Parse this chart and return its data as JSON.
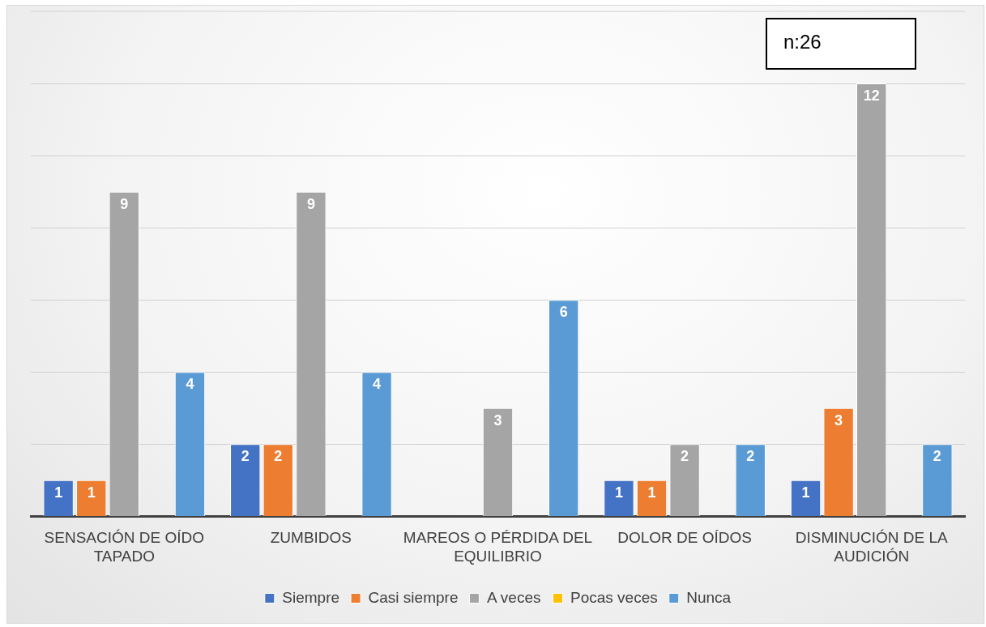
{
  "chart_data": {
    "type": "bar",
    "categories": [
      "SENSACIÓN DE OÍDO TAPADO",
      "ZUMBIDOS",
      "MAREOS O PÉRDIDA DEL EQUILIBRIO",
      "DOLOR DE OÍDOS",
      "DISMINUCIÓN DE LA AUDICIÓN"
    ],
    "series": [
      {
        "name": "Siempre",
        "color": "#4472c4",
        "values": [
          1,
          2,
          null,
          1,
          1
        ]
      },
      {
        "name": "Casi siempre",
        "color": "#ed7d31",
        "values": [
          1,
          2,
          null,
          1,
          3
        ]
      },
      {
        "name": "A veces",
        "color": "#a5a5a5",
        "values": [
          9,
          9,
          3,
          2,
          12
        ]
      },
      {
        "name": "Pocas veces",
        "color": "#ffc000",
        "values": [
          null,
          null,
          null,
          null,
          null
        ]
      },
      {
        "name": "Nunca",
        "color": "#5b9bd5",
        "values": [
          4,
          4,
          6,
          2,
          2
        ]
      }
    ],
    "ylim": [
      0,
      14
    ],
    "yticks": [
      {
        "value": 0,
        "label": null
      },
      {
        "value": 2,
        "label": null
      },
      {
        "value": 4,
        "label": null
      },
      {
        "value": 6,
        "label": null
      },
      {
        "value": 8,
        "label": null
      },
      {
        "value": 10,
        "label": null
      },
      {
        "value": 12,
        "label": null
      }
    ],
    "tick_labels": "x",
    "grid": "y",
    "legend": "bottom",
    "data_labels": true,
    "annotations": [
      "n:26"
    ]
  }
}
